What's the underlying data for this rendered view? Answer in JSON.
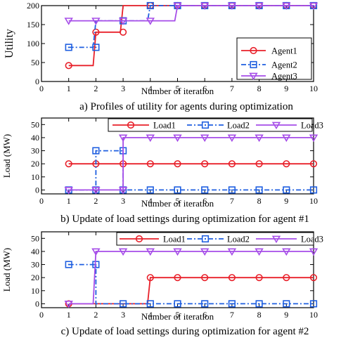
{
  "chart_data": [
    {
      "type": "line",
      "caption": "a) Profiles of utility for agents during optimization",
      "xlabel": "Number of iteration",
      "ylabel": "Utility",
      "xlim": [
        0,
        10
      ],
      "ylim": [
        0,
        200
      ],
      "xticks": [
        0,
        1,
        2,
        3,
        4,
        5,
        6,
        7,
        8,
        9,
        10
      ],
      "yticks": [
        0,
        50,
        100,
        150,
        200
      ],
      "legend_position": "right",
      "series": [
        {
          "name": "Agent1",
          "color": "#e8202a",
          "marker": "circle",
          "dash": "solid",
          "points": [
            [
              1,
              42
            ],
            [
              1.9,
              42
            ],
            [
              2,
              130
            ],
            [
              2.9,
              130
            ],
            [
              3,
              200
            ],
            [
              4,
              200
            ],
            [
              5,
              200
            ],
            [
              6,
              200
            ],
            [
              7,
              200
            ],
            [
              8,
              200
            ],
            [
              9,
              200
            ],
            [
              10,
              200
            ]
          ],
          "markers": [
            [
              1,
              42
            ],
            [
              2,
              130
            ],
            [
              3,
              130
            ],
            [
              4,
              200
            ],
            [
              5,
              200
            ],
            [
              6,
              200
            ],
            [
              7,
              200
            ],
            [
              8,
              200
            ],
            [
              9,
              200
            ],
            [
              10,
              200
            ]
          ]
        },
        {
          "name": "Agent2",
          "color": "#1f5fe0",
          "marker": "square",
          "dash": "dashdot",
          "points": [
            [
              1,
              90
            ],
            [
              1.9,
              90
            ],
            [
              2,
              160
            ],
            [
              3,
              160
            ],
            [
              3.9,
              160
            ],
            [
              4,
              200
            ],
            [
              5,
              200
            ],
            [
              6,
              200
            ],
            [
              7,
              200
            ],
            [
              8,
              200
            ],
            [
              9,
              200
            ],
            [
              10,
              200
            ]
          ],
          "markers": [
            [
              1,
              90
            ],
            [
              2,
              90
            ],
            [
              3,
              160
            ],
            [
              4,
              200
            ],
            [
              5,
              200
            ],
            [
              6,
              200
            ],
            [
              7,
              200
            ],
            [
              8,
              200
            ],
            [
              9,
              200
            ],
            [
              10,
              200
            ]
          ]
        },
        {
          "name": "Agent3",
          "color": "#a64de8",
          "marker": "triangle",
          "dash": "solid",
          "points": [
            [
              1,
              160
            ],
            [
              2,
              160
            ],
            [
              3,
              160
            ],
            [
              4,
              160
            ],
            [
              4.9,
              160
            ],
            [
              5,
              200
            ],
            [
              6,
              200
            ],
            [
              7,
              200
            ],
            [
              8,
              200
            ],
            [
              9,
              200
            ],
            [
              10,
              200
            ]
          ],
          "markers": [
            [
              1,
              160
            ],
            [
              2,
              160
            ],
            [
              3,
              160
            ],
            [
              4,
              160
            ],
            [
              5,
              200
            ],
            [
              6,
              200
            ],
            [
              7,
              200
            ],
            [
              8,
              200
            ],
            [
              9,
              200
            ],
            [
              10,
              200
            ]
          ]
        }
      ]
    },
    {
      "type": "line",
      "caption": "b) Update of load settings during optimization for agent #1",
      "xlabel": "Number of iteration",
      "ylabel": "Load (MW)",
      "xlim": [
        0,
        10
      ],
      "ylim": [
        -3,
        55
      ],
      "xticks": [
        0,
        1,
        2,
        3,
        4,
        5,
        6,
        7,
        8,
        9,
        10
      ],
      "yticks": [
        0,
        10,
        20,
        30,
        40,
        50
      ],
      "legend_position": "top",
      "series": [
        {
          "name": "Load1",
          "color": "#e8202a",
          "marker": "circle",
          "dash": "solid",
          "points": [
            [
              1,
              20
            ],
            [
              2,
              20
            ],
            [
              3,
              20
            ],
            [
              4,
              20
            ],
            [
              5,
              20
            ],
            [
              6,
              20
            ],
            [
              7,
              20
            ],
            [
              8,
              20
            ],
            [
              9,
              20
            ],
            [
              10,
              20
            ]
          ],
          "markers": [
            [
              1,
              20
            ],
            [
              2,
              20
            ],
            [
              3,
              20
            ],
            [
              4,
              20
            ],
            [
              5,
              20
            ],
            [
              6,
              20
            ],
            [
              7,
              20
            ],
            [
              8,
              20
            ],
            [
              9,
              20
            ],
            [
              10,
              20
            ]
          ]
        },
        {
          "name": "Load2",
          "color": "#1f5fe0",
          "marker": "square",
          "dash": "dashdot",
          "points": [
            [
              1,
              0
            ],
            [
              2,
              0
            ],
            [
              2,
              30
            ],
            [
              3,
              30
            ],
            [
              3,
              0
            ],
            [
              4,
              0
            ],
            [
              5,
              0
            ],
            [
              6,
              0
            ],
            [
              7,
              0
            ],
            [
              8,
              0
            ],
            [
              9,
              0
            ],
            [
              10,
              0
            ]
          ],
          "markers": [
            [
              1,
              0
            ],
            [
              2,
              0
            ],
            [
              2,
              30
            ],
            [
              3,
              30
            ],
            [
              3,
              0
            ],
            [
              4,
              0
            ],
            [
              5,
              0
            ],
            [
              6,
              0
            ],
            [
              7,
              0
            ],
            [
              8,
              0
            ],
            [
              9,
              0
            ],
            [
              10,
              0
            ]
          ]
        },
        {
          "name": "Load3",
          "color": "#a64de8",
          "marker": "triangle",
          "dash": "solid",
          "points": [
            [
              1,
              0
            ],
            [
              2,
              0
            ],
            [
              3,
              0
            ],
            [
              3,
              40
            ],
            [
              4,
              40
            ],
            [
              5,
              40
            ],
            [
              6,
              40
            ],
            [
              7,
              40
            ],
            [
              8,
              40
            ],
            [
              9,
              40
            ],
            [
              10,
              40
            ]
          ],
          "markers": [
            [
              1,
              0
            ],
            [
              2,
              0
            ],
            [
              3,
              0
            ],
            [
              3,
              40
            ],
            [
              4,
              40
            ],
            [
              5,
              40
            ],
            [
              6,
              40
            ],
            [
              7,
              40
            ],
            [
              8,
              40
            ],
            [
              9,
              40
            ],
            [
              10,
              40
            ]
          ]
        }
      ]
    },
    {
      "type": "line",
      "caption": "c) Update of load settings during optimization for agent #2",
      "xlabel": "Number of iteration",
      "ylabel": "Load (MW)",
      "xlim": [
        0,
        10
      ],
      "ylim": [
        -3,
        55
      ],
      "xticks": [
        0,
        1,
        2,
        3,
        4,
        5,
        6,
        7,
        8,
        9,
        10
      ],
      "yticks": [
        0,
        10,
        20,
        30,
        40,
        50
      ],
      "legend_position": "top",
      "series": [
        {
          "name": "Load1",
          "color": "#e8202a",
          "marker": "circle",
          "dash": "solid",
          "points": [
            [
              1,
              0
            ],
            [
              2,
              0
            ],
            [
              3,
              0
            ],
            [
              3.9,
              0
            ],
            [
              4,
              20
            ],
            [
              5,
              20
            ],
            [
              6,
              20
            ],
            [
              7,
              20
            ],
            [
              8,
              20
            ],
            [
              9,
              20
            ],
            [
              10,
              20
            ]
          ],
          "markers": [
            [
              1,
              0
            ],
            [
              4,
              20
            ],
            [
              5,
              20
            ],
            [
              6,
              20
            ],
            [
              7,
              20
            ],
            [
              8,
              20
            ],
            [
              9,
              20
            ],
            [
              10,
              20
            ]
          ]
        },
        {
          "name": "Load2",
          "color": "#1f5fe0",
          "marker": "square",
          "dash": "dashdot",
          "points": [
            [
              1,
              30
            ],
            [
              2,
              30
            ],
            [
              2,
              0
            ],
            [
              3,
              0
            ],
            [
              4,
              0
            ],
            [
              5,
              0
            ],
            [
              6,
              0
            ],
            [
              7,
              0
            ],
            [
              8,
              0
            ],
            [
              9,
              0
            ],
            [
              10,
              0
            ]
          ],
          "markers": [
            [
              1,
              30
            ],
            [
              2,
              30
            ],
            [
              3,
              0
            ],
            [
              4,
              0
            ],
            [
              5,
              0
            ],
            [
              6,
              0
            ],
            [
              7,
              0
            ],
            [
              8,
              0
            ],
            [
              9,
              0
            ],
            [
              10,
              0
            ]
          ]
        },
        {
          "name": "Load3",
          "color": "#a64de8",
          "marker": "triangle",
          "dash": "solid",
          "points": [
            [
              1,
              0
            ],
            [
              1.9,
              0
            ],
            [
              2,
              40
            ],
            [
              3,
              40
            ],
            [
              4,
              40
            ],
            [
              5,
              40
            ],
            [
              6,
              40
            ],
            [
              7,
              40
            ],
            [
              8,
              40
            ],
            [
              9,
              40
            ],
            [
              10,
              40
            ]
          ],
          "markers": [
            [
              1,
              0
            ],
            [
              2,
              40
            ],
            [
              3,
              40
            ],
            [
              4,
              40
            ],
            [
              5,
              40
            ],
            [
              6,
              40
            ],
            [
              7,
              40
            ],
            [
              8,
              40
            ],
            [
              9,
              40
            ],
            [
              10,
              40
            ]
          ]
        }
      ]
    }
  ]
}
